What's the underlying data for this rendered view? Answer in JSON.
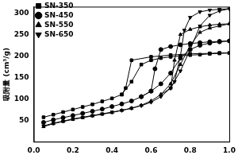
{
  "chart_data": {
    "type": "line",
    "y_label": "吸附量 (cm³/g)",
    "color": "#000000",
    "xlim": [
      0,
      1.0
    ],
    "xticks": [
      {
        "value": 0,
        "label": "0.0"
      },
      0.2,
      0.4,
      0.6,
      0.8,
      {
        "value": 1,
        "label": "1.0"
      }
    ],
    "ylim": [
      0,
      315
    ],
    "yticks": [
      50,
      100,
      150,
      200,
      250,
      300
    ],
    "grid": false,
    "legend": "upper left",
    "series": [
      {
        "name": "SN-350",
        "marker": "square",
        "x": [
          0.05,
          0.1,
          0.15,
          0.2,
          0.25,
          0.3,
          0.35,
          0.4,
          0.45,
          0.5,
          0.55,
          0.6,
          0.65,
          0.7,
          0.75,
          0.8,
          0.85,
          0.9,
          0.95,
          1.0,
          0.95,
          0.9,
          0.8,
          0.7,
          0.6,
          0.5,
          0.47,
          0.45
        ],
        "values": [
          57,
          63,
          69,
          75,
          81,
          87,
          94,
          101,
          110,
          140,
          180,
          190,
          195,
          198,
          200,
          202,
          203,
          205,
          206,
          207,
          207,
          206,
          205,
          202,
          198,
          190,
          125,
          110
        ]
      },
      {
        "name": "SN-450",
        "marker": "circle",
        "x": [
          0.05,
          0.1,
          0.15,
          0.2,
          0.25,
          0.3,
          0.35,
          0.4,
          0.45,
          0.5,
          0.55,
          0.6,
          0.65,
          0.7,
          0.75,
          0.8,
          0.85,
          0.9,
          0.95,
          1.0,
          0.95,
          0.9,
          0.85,
          0.8,
          0.75,
          0.7,
          0.65,
          0.62,
          0.6,
          0.55
        ],
        "values": [
          45,
          51,
          56,
          61,
          66,
          71,
          76,
          82,
          88,
          95,
          105,
          118,
          135,
          160,
          195,
          215,
          225,
          230,
          233,
          235,
          234,
          233,
          231,
          229,
          226,
          222,
          215,
          170,
          118,
          105
        ]
      },
      {
        "name": "SN-550",
        "marker": "triangle",
        "x": [
          0.05,
          0.1,
          0.15,
          0.2,
          0.25,
          0.3,
          0.35,
          0.4,
          0.45,
          0.5,
          0.55,
          0.6,
          0.65,
          0.7,
          0.75,
          0.8,
          0.85,
          0.9,
          0.95,
          1.0,
          0.95,
          0.9,
          0.85,
          0.8,
          0.75,
          0.72,
          0.7,
          0.65
        ],
        "values": [
          35,
          42,
          47,
          52,
          56,
          60,
          64,
          68,
          73,
          78,
          85,
          95,
          110,
          135,
          180,
          225,
          255,
          265,
          270,
          275,
          274,
          272,
          268,
          262,
          250,
          190,
          125,
          110
        ]
      },
      {
        "name": "SN-650",
        "marker": "triangle_down",
        "x": [
          0.05,
          0.1,
          0.15,
          0.2,
          0.25,
          0.3,
          0.35,
          0.4,
          0.45,
          0.5,
          0.55,
          0.6,
          0.65,
          0.7,
          0.75,
          0.8,
          0.85,
          0.9,
          0.95,
          1.0,
          0.95,
          0.9,
          0.85,
          0.8,
          0.77,
          0.75,
          0.72,
          0.7
        ],
        "values": [
          37,
          43,
          48,
          53,
          57,
          61,
          65,
          69,
          73,
          78,
          84,
          92,
          105,
          125,
          165,
          215,
          270,
          295,
          305,
          310,
          309,
          307,
          303,
          290,
          260,
          200,
          140,
          125
        ]
      }
    ]
  }
}
